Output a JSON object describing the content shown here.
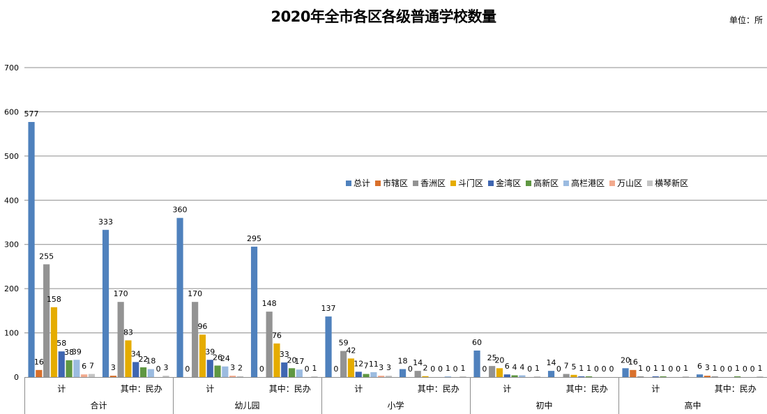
{
  "header": {
    "title": "2020年全市各区各级普通学校数量",
    "unit": "单位：所"
  },
  "chart_data": {
    "type": "bar",
    "title": "2020年全市各区各级普通学校数量",
    "unit_label": "单位：所",
    "xlabel": "",
    "ylabel": "",
    "ylim": [
      0,
      700
    ],
    "yticks": [
      0,
      100,
      200,
      300,
      400,
      500,
      600,
      700
    ],
    "grid": true,
    "legend_position": "center-right inside plot",
    "category_groups": [
      "合计",
      "幼儿园",
      "小学",
      "初中",
      "高中"
    ],
    "categories": [
      "合计 - 计",
      "合计 - 其中：民办",
      "幼儿园 - 计",
      "幼儿园 - 其中：民办",
      "小学 - 计",
      "小学 - 其中：民办",
      "初中 - 计",
      "初中 - 其中：民办",
      "高中 - 计",
      "高中 - 其中：民办"
    ],
    "subcategory_labels": [
      "计",
      "其中：民办"
    ],
    "series": [
      {
        "name": "总计",
        "color": "#4F81BD",
        "values": [
          577,
          333,
          360,
          295,
          137,
          18,
          60,
          14,
          20,
          6
        ]
      },
      {
        "name": "市辖区",
        "color": "#D9702B",
        "values": [
          16,
          3,
          0,
          0,
          0,
          0,
          0,
          0,
          16,
          3
        ]
      },
      {
        "name": "香洲区",
        "color": "#939393",
        "values": [
          255,
          170,
          170,
          148,
          59,
          14,
          25,
          7,
          1,
          1
        ]
      },
      {
        "name": "斗门区",
        "color": "#E5AC00",
        "values": [
          158,
          83,
          96,
          76,
          42,
          2,
          20,
          5,
          0,
          0
        ]
      },
      {
        "name": "金湾区",
        "color": "#3F66B1",
        "values": [
          58,
          34,
          39,
          33,
          12,
          0,
          6,
          1,
          1,
          0
        ]
      },
      {
        "name": "高新区",
        "color": "#5F9742",
        "values": [
          38,
          22,
          26,
          20,
          7,
          0,
          4,
          1,
          1,
          1
        ]
      },
      {
        "name": "高栏港区",
        "color": "#9BBBE0",
        "values": [
          39,
          18,
          24,
          17,
          11,
          1,
          4,
          0,
          0,
          0
        ]
      },
      {
        "name": "万山区",
        "color": "#F2AA8E",
        "values": [
          6,
          0,
          3,
          0,
          3,
          0,
          0,
          0,
          0,
          0
        ]
      },
      {
        "name": "横琴新区",
        "color": "#C4C4C4",
        "values": [
          7,
          3,
          2,
          1,
          3,
          1,
          1,
          0,
          1,
          1
        ]
      }
    ]
  }
}
